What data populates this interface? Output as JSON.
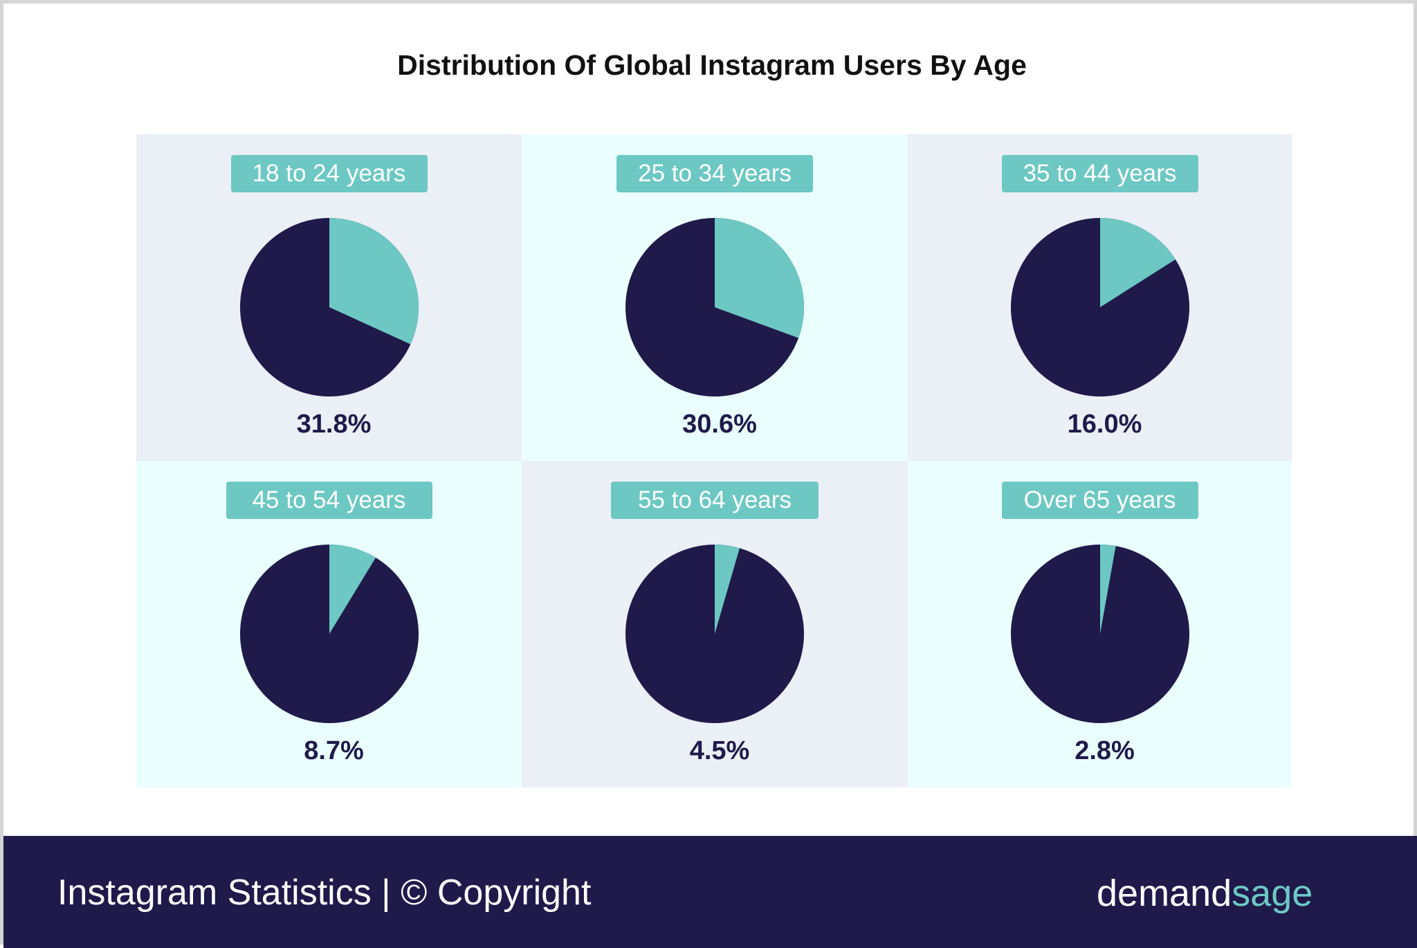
{
  "colors": {
    "dark": "#1f1a4a",
    "teal": "#6dc8c3",
    "panel_gray": "#ebeff6",
    "panel_cyan": "#eafefe",
    "pct_text": "#1f1a4a"
  },
  "footer": {
    "text": "Instagram Statistics | © Copyright",
    "brand_part1": "demand",
    "brand_part2": "sage"
  },
  "chart_data": {
    "type": "pie",
    "title": "Distribution Of Global Instagram Users By Age",
    "panels": [
      {
        "label": "18 to 24 years",
        "value": 31.8,
        "value_label": "31.8%"
      },
      {
        "label": "25 to 34 years",
        "value": 30.6,
        "value_label": "30.6%"
      },
      {
        "label": "35 to 44 years",
        "value": 16.0,
        "value_label": "16.0%"
      },
      {
        "label": "45 to 54 years",
        "value": 8.7,
        "value_label": "8.7%"
      },
      {
        "label": "55 to 64 years",
        "value": 4.5,
        "value_label": "4.5%"
      },
      {
        "label": "Over 65 years",
        "value": 2.8,
        "value_label": "2.8%"
      }
    ]
  }
}
